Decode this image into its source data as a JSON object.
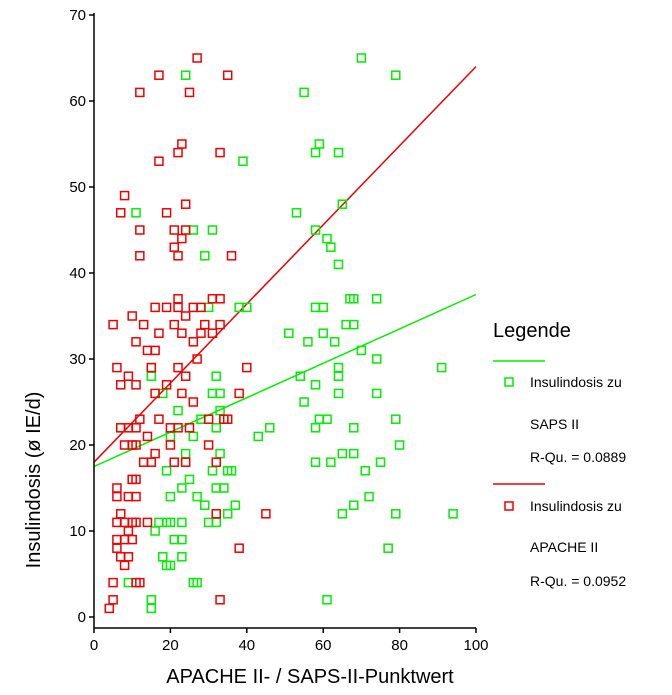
{
  "chart_data": {
    "type": "scatter",
    "title": "",
    "xlabel": "APACHE II- / SAPS-II-Punktwert",
    "ylabel": "Insulindosis (ø IE/d)",
    "xlim": [
      0,
      100
    ],
    "ylim": [
      0,
      70
    ],
    "x_ticks": [
      "0",
      "20",
      "40",
      "60",
      "80",
      "100"
    ],
    "y_ticks": [
      "0",
      "10",
      "20",
      "30",
      "40",
      "50",
      "60",
      "70"
    ],
    "grid": false,
    "legend_position": "right",
    "legend_title": "Legende",
    "series": [
      {
        "name_lines": [
          "Insulindosis zu",
          "SAPS II"
        ],
        "r2_label": "R-Qu. = 0.0889",
        "color": "#00ee00",
        "fit": [
          [
            0,
            17.5
          ],
          [
            100,
            37.5
          ]
        ],
        "points": [
          [
            24,
            63
          ],
          [
            70,
            65
          ],
          [
            79,
            63
          ],
          [
            55,
            61
          ],
          [
            59,
            55
          ],
          [
            58,
            54
          ],
          [
            64,
            54
          ],
          [
            39,
            53
          ],
          [
            53,
            47
          ],
          [
            65,
            48
          ],
          [
            11,
            47
          ],
          [
            58,
            45
          ],
          [
            26,
            45
          ],
          [
            31,
            45
          ],
          [
            61,
            44
          ],
          [
            62,
            43
          ],
          [
            64,
            41
          ],
          [
            29,
            42
          ],
          [
            38,
            36
          ],
          [
            40,
            36
          ],
          [
            58,
            36
          ],
          [
            60,
            36
          ],
          [
            67,
            37
          ],
          [
            68,
            37
          ],
          [
            74,
            37
          ],
          [
            30,
            36
          ],
          [
            66,
            34
          ],
          [
            68,
            34
          ],
          [
            60,
            33
          ],
          [
            51,
            33
          ],
          [
            63,
            32
          ],
          [
            56,
            32
          ],
          [
            70,
            31
          ],
          [
            15,
            29
          ],
          [
            15,
            28
          ],
          [
            54,
            28
          ],
          [
            64,
            29
          ],
          [
            64,
            28
          ],
          [
            74,
            30
          ],
          [
            91,
            29
          ],
          [
            32,
            28
          ],
          [
            58,
            27
          ],
          [
            31,
            26
          ],
          [
            33,
            26
          ],
          [
            55,
            25
          ],
          [
            64,
            26
          ],
          [
            74,
            26
          ],
          [
            18,
            26
          ],
          [
            33,
            24
          ],
          [
            22,
            24
          ],
          [
            34,
            23
          ],
          [
            59,
            23
          ],
          [
            28,
            23
          ],
          [
            61,
            23
          ],
          [
            32,
            22
          ],
          [
            46,
            22
          ],
          [
            58,
            22
          ],
          [
            68,
            22
          ],
          [
            79,
            23
          ],
          [
            43,
            21
          ],
          [
            20,
            21
          ],
          [
            26,
            21
          ],
          [
            24,
            19
          ],
          [
            33,
            19
          ],
          [
            58,
            18
          ],
          [
            62,
            18
          ],
          [
            65,
            19
          ],
          [
            68,
            19
          ],
          [
            75,
            18
          ],
          [
            80,
            20
          ],
          [
            71,
            17
          ],
          [
            31,
            17
          ],
          [
            35,
            17
          ],
          [
            19,
            17
          ],
          [
            36,
            17
          ],
          [
            25,
            16
          ],
          [
            23,
            15
          ],
          [
            32,
            15
          ],
          [
            34,
            15
          ],
          [
            27,
            14
          ],
          [
            20,
            14
          ],
          [
            29,
            13
          ],
          [
            37,
            13
          ],
          [
            35,
            12
          ],
          [
            19,
            11
          ],
          [
            32,
            11
          ],
          [
            23,
            11
          ],
          [
            30,
            11
          ],
          [
            17,
            11
          ],
          [
            20,
            11
          ],
          [
            65,
            12
          ],
          [
            68,
            13
          ],
          [
            72,
            14
          ],
          [
            79,
            12
          ],
          [
            94,
            12
          ],
          [
            16,
            10
          ],
          [
            23,
            9
          ],
          [
            21,
            9
          ],
          [
            23,
            7
          ],
          [
            18,
            7
          ],
          [
            19,
            6
          ],
          [
            20,
            6
          ],
          [
            9,
            4
          ],
          [
            27,
            4
          ],
          [
            26,
            4
          ],
          [
            15,
            2
          ],
          [
            15,
            1
          ],
          [
            61,
            2
          ],
          [
            77,
            8
          ]
        ]
      },
      {
        "name_lines": [
          "Insulindosis zu",
          "APACHE II"
        ],
        "r2_label": "R-Qu. = 0.0952",
        "color": "#ee0000",
        "fit": [
          [
            0,
            18
          ],
          [
            100,
            64
          ]
        ],
        "points": [
          [
            27,
            65
          ],
          [
            17,
            63
          ],
          [
            35,
            63
          ],
          [
            12,
            61
          ],
          [
            25,
            61
          ],
          [
            23,
            55
          ],
          [
            22,
            54
          ],
          [
            33,
            54
          ],
          [
            17,
            53
          ],
          [
            8,
            49
          ],
          [
            7,
            47
          ],
          [
            19,
            47
          ],
          [
            24,
            48
          ],
          [
            12,
            45
          ],
          [
            21,
            45
          ],
          [
            23,
            44
          ],
          [
            12,
            42
          ],
          [
            21,
            43
          ],
          [
            22,
            42
          ],
          [
            24,
            45
          ],
          [
            36,
            42
          ],
          [
            16,
            36
          ],
          [
            19,
            36
          ],
          [
            22,
            36
          ],
          [
            22,
            37
          ],
          [
            24,
            35
          ],
          [
            26,
            36
          ],
          [
            28,
            36
          ],
          [
            31,
            37
          ],
          [
            33,
            37
          ],
          [
            10,
            35
          ],
          [
            5,
            34
          ],
          [
            13,
            34
          ],
          [
            21,
            34
          ],
          [
            23,
            33
          ],
          [
            29,
            34
          ],
          [
            31,
            33
          ],
          [
            33,
            34
          ],
          [
            11,
            32
          ],
          [
            17,
            33
          ],
          [
            14,
            31
          ],
          [
            16,
            31
          ],
          [
            26,
            32
          ],
          [
            28,
            33
          ],
          [
            6,
            29
          ],
          [
            9,
            28
          ],
          [
            15,
            29
          ],
          [
            22,
            29
          ],
          [
            24,
            28
          ],
          [
            27,
            30
          ],
          [
            40,
            29
          ],
          [
            7,
            27
          ],
          [
            11,
            27
          ],
          [
            19,
            27
          ],
          [
            23,
            26
          ],
          [
            26,
            25
          ],
          [
            16,
            26
          ],
          [
            38,
            26
          ],
          [
            12,
            23
          ],
          [
            7,
            22
          ],
          [
            9,
            22
          ],
          [
            11,
            22
          ],
          [
            17,
            23
          ],
          [
            20,
            22
          ],
          [
            22,
            22
          ],
          [
            25,
            22
          ],
          [
            30,
            23
          ],
          [
            34,
            23
          ],
          [
            35,
            23
          ],
          [
            8,
            20
          ],
          [
            10,
            20
          ],
          [
            11,
            20
          ],
          [
            14,
            21
          ],
          [
            16,
            19
          ],
          [
            20,
            20
          ],
          [
            13,
            18
          ],
          [
            15,
            18
          ],
          [
            21,
            18
          ],
          [
            24,
            18
          ],
          [
            30,
            20
          ],
          [
            32,
            18
          ],
          [
            10,
            16
          ],
          [
            11,
            16
          ],
          [
            6,
            15
          ],
          [
            6,
            14
          ],
          [
            9,
            14
          ],
          [
            11,
            14
          ],
          [
            6,
            11
          ],
          [
            8,
            11
          ],
          [
            10,
            11
          ],
          [
            11,
            11
          ],
          [
            14,
            11
          ],
          [
            9,
            10
          ],
          [
            6,
            9
          ],
          [
            8,
            9
          ],
          [
            10,
            9
          ],
          [
            6,
            8
          ],
          [
            7,
            7
          ],
          [
            9,
            7
          ],
          [
            8,
            6
          ],
          [
            5,
            4
          ],
          [
            11,
            4
          ],
          [
            12,
            4
          ],
          [
            5,
            2
          ],
          [
            4,
            1
          ],
          [
            33,
            2
          ],
          [
            32,
            12
          ],
          [
            38,
            8
          ],
          [
            45,
            12
          ],
          [
            7,
            12
          ]
        ]
      }
    ]
  }
}
